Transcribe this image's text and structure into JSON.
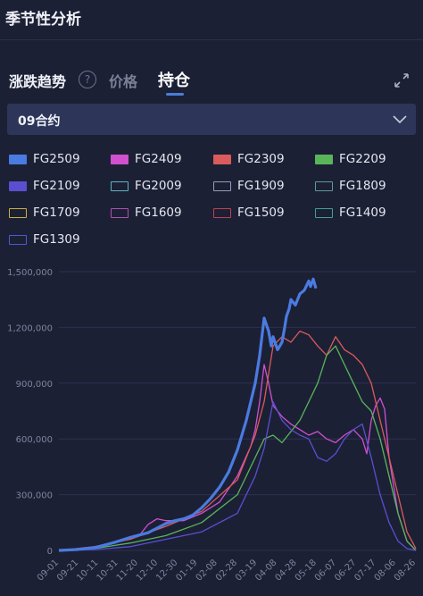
{
  "header": {
    "title": "季节性分析"
  },
  "tabs": {
    "trend": "涨跌趋势",
    "help": "?",
    "price": "价格",
    "oi": "持仓"
  },
  "select": {
    "value": "09合约"
  },
  "chart_data": {
    "type": "line",
    "title": "",
    "ylim": [
      0,
      1500000
    ],
    "yticks": [
      "0",
      "300,000",
      "600,000",
      "900,000",
      "1,200,000",
      "1,500,000"
    ],
    "xticks": [
      "09-01",
      "09-21",
      "10-11",
      "10-31",
      "11-20",
      "12-10",
      "12-30",
      "01-19",
      "02-08",
      "02-28",
      "03-19",
      "04-08",
      "04-28",
      "05-18",
      "06-07",
      "06-27",
      "07-17",
      "08-06",
      "08-26"
    ],
    "legend_position": "top",
    "series": [
      {
        "name": "FG2509",
        "color": "#4a7be0",
        "filled": true,
        "bold": true,
        "x": [
          0,
          20,
          40,
          60,
          80,
          100,
          110,
          120,
          130,
          140,
          150,
          160,
          170,
          180,
          190,
          200,
          210,
          220,
          225,
          230,
          235,
          238,
          240,
          245,
          250,
          253,
          255,
          258,
          260,
          265,
          270,
          275,
          280,
          282,
          285,
          288
        ],
        "values": [
          0,
          5000,
          15000,
          40000,
          70000,
          95000,
          120000,
          145000,
          160000,
          170000,
          190000,
          230000,
          280000,
          340000,
          420000,
          540000,
          700000,
          900000,
          1050000,
          1250000,
          1180000,
          1100000,
          1150000,
          1080000,
          1120000,
          1200000,
          1260000,
          1300000,
          1350000,
          1320000,
          1380000,
          1400000,
          1450000,
          1420000,
          1460000,
          1410000
        ]
      },
      {
        "name": "FG2409",
        "color": "#d050d0",
        "filled": true,
        "x": [
          0,
          30,
          60,
          90,
          100,
          110,
          120,
          140,
          160,
          180,
          200,
          215,
          220,
          225,
          230,
          235,
          240,
          250,
          260,
          270,
          280,
          290,
          300,
          310,
          320,
          330,
          340,
          345,
          350,
          355,
          360,
          365,
          370,
          380,
          390,
          400
        ],
        "values": [
          0,
          10000,
          40000,
          80000,
          140000,
          170000,
          160000,
          160000,
          200000,
          260000,
          400000,
          560000,
          650000,
          800000,
          1000000,
          900000,
          780000,
          720000,
          680000,
          650000,
          620000,
          640000,
          600000,
          580000,
          620000,
          650000,
          600000,
          520000,
          700000,
          780000,
          820000,
          760000,
          500000,
          200000,
          50000,
          0
        ]
      },
      {
        "name": "FG2309",
        "color": "#d95b5b",
        "filled": true,
        "x": [
          0,
          40,
          80,
          120,
          160,
          200,
          220,
          230,
          240,
          250,
          260,
          270,
          280,
          290,
          300,
          310,
          320,
          330,
          340,
          350,
          360,
          370,
          380,
          390,
          400
        ],
        "values": [
          0,
          20000,
          60000,
          130000,
          210000,
          380000,
          620000,
          800000,
          1100000,
          1150000,
          1120000,
          1180000,
          1160000,
          1100000,
          1050000,
          1150000,
          1080000,
          1050000,
          1000000,
          900000,
          700000,
          500000,
          300000,
          100000,
          10000
        ]
      },
      {
        "name": "FG2209",
        "color": "#5ab55a",
        "filled": true,
        "x": [
          0,
          40,
          80,
          120,
          160,
          200,
          220,
          230,
          240,
          250,
          260,
          270,
          280,
          290,
          300,
          310,
          320,
          330,
          340,
          350,
          360,
          370,
          380,
          390,
          400
        ],
        "values": [
          0,
          10000,
          40000,
          80000,
          150000,
          300000,
          500000,
          600000,
          620000,
          580000,
          640000,
          700000,
          800000,
          900000,
          1050000,
          1100000,
          1000000,
          900000,
          800000,
          750000,
          600000,
          400000,
          200000,
          50000,
          0
        ]
      },
      {
        "name": "FG2109",
        "color": "#5a4fd0",
        "filled": true,
        "x": [
          0,
          40,
          80,
          120,
          160,
          200,
          220,
          230,
          240,
          250,
          260,
          270,
          280,
          290,
          300,
          310,
          320,
          330,
          340,
          350,
          360,
          370,
          380,
          390,
          400
        ],
        "values": [
          0,
          5000,
          20000,
          60000,
          100000,
          200000,
          400000,
          550000,
          800000,
          700000,
          650000,
          620000,
          600000,
          500000,
          480000,
          520000,
          600000,
          650000,
          680000,
          500000,
          300000,
          150000,
          50000,
          10000,
          0
        ]
      },
      {
        "name": "FG2009",
        "color": "#5ab5c0",
        "filled": false,
        "x": [],
        "values": []
      },
      {
        "name": "FG1909",
        "color": "#9a9ab5",
        "filled": false,
        "x": [],
        "values": []
      },
      {
        "name": "FG1809",
        "color": "#5a9aa0",
        "filled": false,
        "x": [],
        "values": []
      },
      {
        "name": "FG1709",
        "color": "#c8b040",
        "filled": false,
        "x": [],
        "values": []
      },
      {
        "name": "FG1609",
        "color": "#b050b0",
        "filled": false,
        "x": [],
        "values": []
      },
      {
        "name": "FG1509",
        "color": "#c04050",
        "filled": false,
        "x": [],
        "values": []
      },
      {
        "name": "FG1409",
        "color": "#40a090",
        "filled": false,
        "x": [],
        "values": []
      },
      {
        "name": "FG1309",
        "color": "#4a5ad0",
        "filled": false,
        "x": [],
        "values": []
      }
    ]
  }
}
